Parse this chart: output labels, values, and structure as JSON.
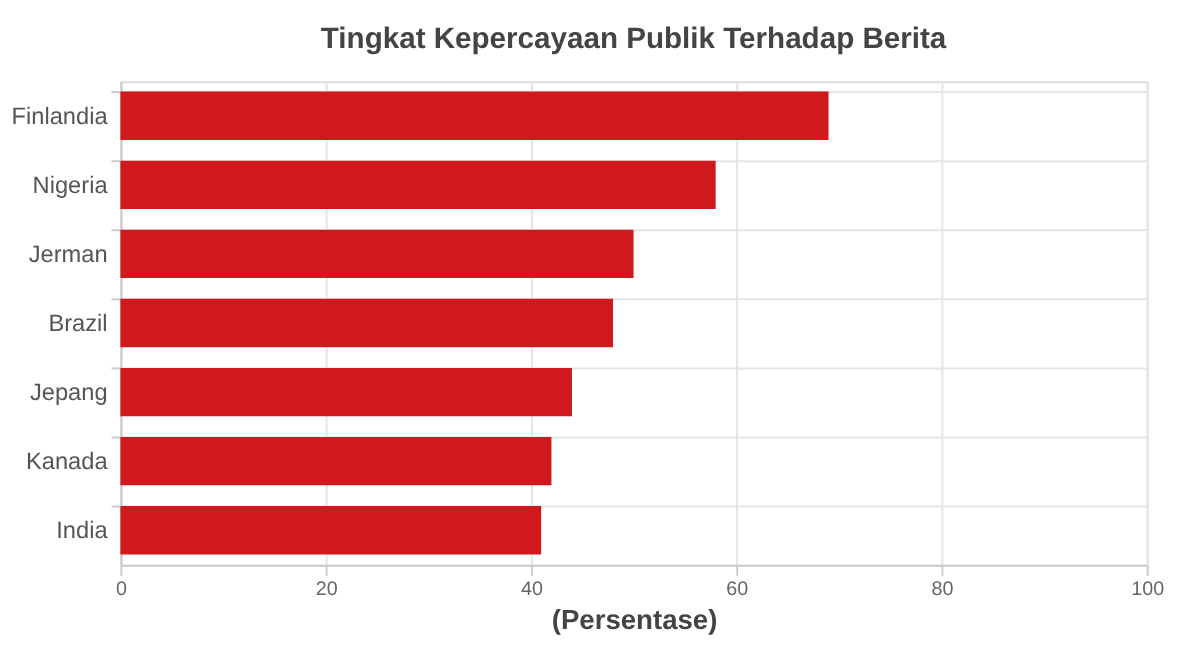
{
  "chart_data": {
    "type": "bar",
    "orientation": "horizontal",
    "title": "Tingkat Kepercayaan Publik Terhadap Berita",
    "xlabel": "(Persentase)",
    "categories": [
      "Finlandia",
      "Nigeria",
      "Jerman",
      "Brazil",
      "Jepang",
      "Kanada",
      "India"
    ],
    "values": [
      69,
      58,
      50,
      48,
      44,
      42,
      41
    ],
    "color": "#d0191c",
    "xlim": [
      0,
      100
    ],
    "xticks": [
      0,
      20,
      40,
      60,
      80,
      100
    ],
    "grid": true
  }
}
